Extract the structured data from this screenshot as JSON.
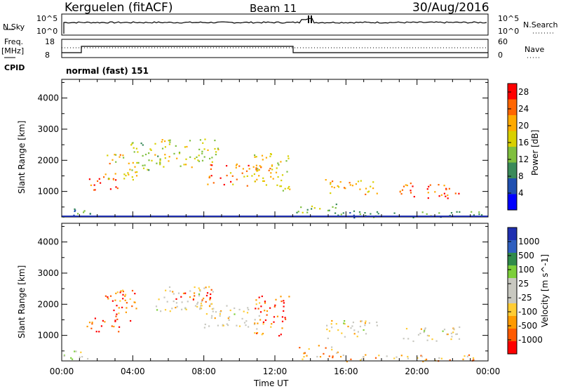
{
  "header": {
    "station": "Kerguelen (fitACF)",
    "beam": "Beam 11",
    "date": "30/Aug/2016"
  },
  "top_panels": {
    "nsky_label": "N.Sky",
    "nsky_ticks": [
      "10^5",
      "10^0"
    ],
    "nsearch_label": "N.Search",
    "nsearch_ticks": [
      "10^5",
      "10^0"
    ],
    "freq_label": "Freq.",
    "freq_unit": "[MHz]",
    "freq_ticks": [
      "18",
      "8"
    ],
    "nave_label": "Nave",
    "nave_ticks": [
      "60",
      "0"
    ],
    "cpid_label": "CPID",
    "cpid_text": "normal (fast) 151"
  },
  "colors": {
    "power": [
      "#0000ff",
      "#1f4fb0",
      "#3a8a5a",
      "#7fbf3f",
      "#d8d000",
      "#ffaa00",
      "#ff6600",
      "#ff0000"
    ],
    "velocity": [
      "#ff0000",
      "#ff5a00",
      "#ff9a00",
      "#ffcc33",
      "#c8c8c0",
      "#c8c8c0",
      "#7ccf3a",
      "#2f8a4a",
      "#2f5fbf",
      "#1f2fb0"
    ]
  },
  "chart_data": [
    {
      "type": "heatmap",
      "title": "",
      "xlabel": "Time UT",
      "ylabel": "Slant Range [km]",
      "xlim": [
        0,
        24
      ],
      "ylim": [
        180,
        4600
      ],
      "x_tick_labels": [
        "00:00",
        "04:00",
        "08:00",
        "12:00",
        "16:00",
        "20:00",
        "00:00"
      ],
      "y_ticks": [
        1000,
        2000,
        3000,
        4000
      ],
      "colorbar": {
        "label": "Power [dB]",
        "ticks": [
          4,
          8,
          12,
          16,
          20,
          24,
          28
        ],
        "range": [
          0,
          30
        ]
      },
      "echo_bands": [
        {
          "t0": 0.0,
          "t1": 1.6,
          "r0": 200,
          "r1": 550,
          "level": 0.35
        },
        {
          "t0": 1.4,
          "t1": 3.2,
          "r0": 1050,
          "r1": 1500,
          "level": 0.85
        },
        {
          "t0": 2.4,
          "t1": 4.2,
          "r0": 1400,
          "r1": 2300,
          "level": 0.6
        },
        {
          "t0": 3.8,
          "t1": 5.4,
          "r0": 1700,
          "r1": 2600,
          "level": 0.5
        },
        {
          "t0": 5.2,
          "t1": 8.8,
          "r0": 1800,
          "r1": 2700,
          "level": 0.55
        },
        {
          "t0": 8.0,
          "t1": 11.2,
          "r0": 1200,
          "r1": 1900,
          "level": 0.75
        },
        {
          "t0": 10.8,
          "t1": 12.8,
          "r0": 1000,
          "r1": 2300,
          "level": 0.6
        },
        {
          "t0": 13.2,
          "t1": 15.6,
          "r0": 250,
          "r1": 650,
          "level": 0.45
        },
        {
          "t0": 14.8,
          "t1": 17.8,
          "r0": 900,
          "r1": 1400,
          "level": 0.7
        },
        {
          "t0": 19.0,
          "t1": 22.4,
          "r0": 800,
          "r1": 1300,
          "level": 0.85
        },
        {
          "t0": 15.6,
          "t1": 23.8,
          "r0": 180,
          "r1": 400,
          "level": 0.35
        }
      ]
    },
    {
      "type": "heatmap",
      "title": "",
      "xlabel": "Time UT",
      "ylabel": "Slant Range [km]",
      "xlim": [
        0,
        24
      ],
      "ylim": [
        180,
        4600
      ],
      "x_tick_labels": [
        "00:00",
        "04:00",
        "08:00",
        "12:00",
        "16:00",
        "20:00",
        "00:00"
      ],
      "y_ticks": [
        1000,
        2000,
        3000,
        4000
      ],
      "colorbar": {
        "label": "Velocity [m s^-1]",
        "ticks": [
          1000,
          500,
          100,
          25,
          -25,
          -100,
          -500,
          -1000
        ]
      },
      "echo_bands": [
        {
          "t0": 0.0,
          "t1": 1.6,
          "r0": 200,
          "r1": 550,
          "level": 0.5
        },
        {
          "t0": 1.4,
          "t1": 3.2,
          "r0": 1050,
          "r1": 1600,
          "level": 0.1
        },
        {
          "t0": 2.4,
          "t1": 4.2,
          "r0": 1400,
          "r1": 2500,
          "level": 0.2
        },
        {
          "t0": 5.2,
          "t1": 8.8,
          "r0": 1800,
          "r1": 2600,
          "level": 0.45
        },
        {
          "t0": 6.0,
          "t1": 8.4,
          "r0": 2100,
          "r1": 2500,
          "level": 0.15
        },
        {
          "t0": 8.0,
          "t1": 11.2,
          "r0": 1200,
          "r1": 2000,
          "level": 0.45
        },
        {
          "t0": 10.8,
          "t1": 12.8,
          "r0": 1000,
          "r1": 2300,
          "level": 0.15
        },
        {
          "t0": 13.2,
          "t1": 15.6,
          "r0": 250,
          "r1": 700,
          "level": 0.3
        },
        {
          "t0": 14.8,
          "t1": 17.8,
          "r0": 900,
          "r1": 1500,
          "level": 0.45
        },
        {
          "t0": 19.0,
          "t1": 22.4,
          "r0": 800,
          "r1": 1300,
          "level": 0.45
        },
        {
          "t0": 15.6,
          "t1": 23.8,
          "r0": 180,
          "r1": 420,
          "level": 0.3
        }
      ]
    }
  ]
}
